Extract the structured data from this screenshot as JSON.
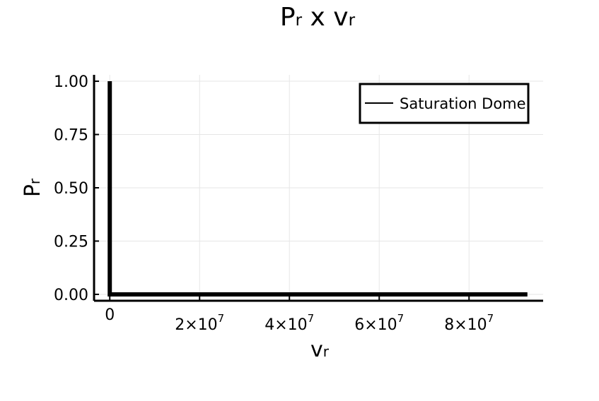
{
  "chart_data": {
    "type": "line",
    "title": {
      "main": "P",
      "sub": "r",
      "middle": " x ",
      "main2": "v",
      "sub2": "r"
    },
    "xlabel": {
      "main": "v",
      "sub": "r"
    },
    "ylabel": {
      "main": "P",
      "sub": "r"
    },
    "xlim": [
      -3500000,
      96500000
    ],
    "ylim": [
      -0.03,
      1.03
    ],
    "xticks": [
      {
        "value": 0,
        "mant": "0",
        "exp": ""
      },
      {
        "value": 20000000,
        "mant": "2×10",
        "exp": "7"
      },
      {
        "value": 40000000,
        "mant": "4×10",
        "exp": "7"
      },
      {
        "value": 60000000,
        "mant": "6×10",
        "exp": "7"
      },
      {
        "value": 80000000,
        "mant": "8×10",
        "exp": "7"
      }
    ],
    "yticks": [
      {
        "value": 0.0,
        "label": "0.00"
      },
      {
        "value": 0.25,
        "label": "0.25"
      },
      {
        "value": 0.5,
        "label": "0.50"
      },
      {
        "value": 0.75,
        "label": "0.75"
      },
      {
        "value": 1.0,
        "label": "1.00"
      }
    ],
    "grid": true,
    "legend_position": "top-right",
    "series": [
      {
        "name": "Saturation Dome",
        "color": "#000000",
        "x": [
          0,
          0,
          0,
          93000000
        ],
        "y": [
          1.0,
          0.5,
          0.0,
          0.0
        ]
      }
    ]
  }
}
